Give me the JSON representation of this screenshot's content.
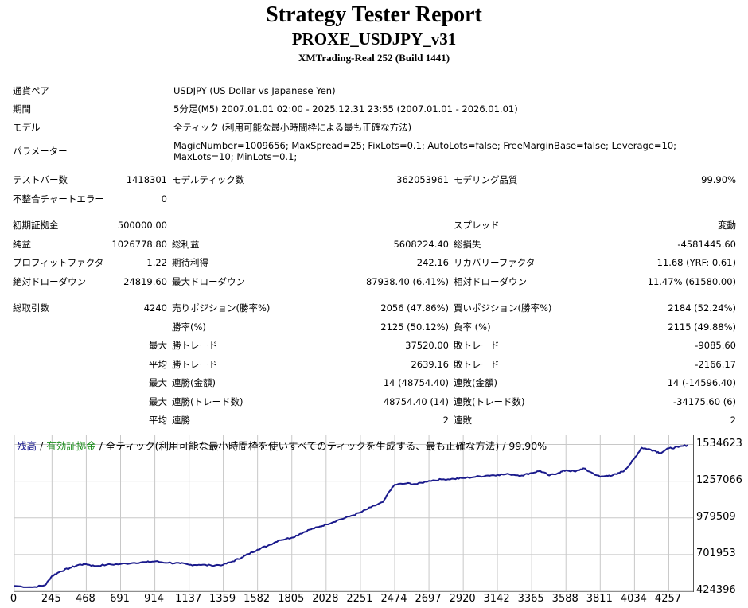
{
  "report": {
    "title": "Strategy Tester Report",
    "subtitle": "PROXE_USDJPY_v31",
    "server": "XMTrading-Real 252 (Build 1441)"
  },
  "info": {
    "symbol_label": "通貨ペア",
    "symbol_value": "USDJPY (US Dollar vs Japanese Yen)",
    "period_label": "期間",
    "period_value": "5分足(M5) 2007.01.01 02:00 - 2025.12.31 23:55 (2007.01.01 - 2026.01.01)",
    "model_label": "モデル",
    "model_value": "全ティック (利用可能な最小時間枠による最も正確な方法)",
    "params_label": "パラメーター",
    "params_value": "MagicNumber=1009656; MaxSpread=25; FixLots=0.1; AutoLots=false; FreeMarginBase=false; Leverage=10; MaxLots=10; MinLots=0.1;"
  },
  "stats": {
    "bars_label": "テストバー数",
    "bars_value": "1418301",
    "ticks_label": "モデルティック数",
    "ticks_value": "362053961",
    "quality_label": "モデリング品質",
    "quality_value": "99.90%",
    "mismatch_label": "不整合チャートエラー",
    "mismatch_value": "0",
    "deposit_label": "初期証拠金",
    "deposit_value": "500000.00",
    "spread_label": "スプレッド",
    "spread_value": "変動",
    "net_label": "純益",
    "net_value": "1026778.80",
    "gross_profit_label": "総利益",
    "gross_profit_value": "5608224.40",
    "gross_loss_label": "総損失",
    "gross_loss_value": "-4581445.60",
    "pf_label": "プロフィットファクタ",
    "pf_value": "1.22",
    "payoff_label": "期待利得",
    "payoff_value": "242.16",
    "recovery_label": "リカバリーファクタ",
    "recovery_value": "11.68 (YRF: 0.61)",
    "abs_dd_label": "絶対ドローダウン",
    "abs_dd_value": "24819.60",
    "max_dd_label": "最大ドローダウン",
    "max_dd_value": "87938.40 (6.41%)",
    "rel_dd_label": "相対ドローダウン",
    "rel_dd_value": "11.47% (61580.00)",
    "trades_label": "総取引数",
    "trades_value": "4240",
    "short_label": "売りポジション(勝率%)",
    "short_value": "2056 (47.86%)",
    "long_label": "買いポジション(勝率%)",
    "long_value": "2184 (52.24%)",
    "win_rate_label": "勝率(%)",
    "win_rate_value": "2125 (50.12%)",
    "loss_rate_label": "負率 (%)",
    "loss_rate_value": "2115 (49.88%)",
    "max_prefix": "最大",
    "avg_prefix": "平均",
    "largest_win_label": "勝トレード",
    "largest_win_value": "37520.00",
    "largest_loss_label": "敗トレード",
    "largest_loss_value": "-9085.60",
    "avg_win_label": "勝トレード",
    "avg_win_value": "2639.16",
    "avg_loss_label": "敗トレード",
    "avg_loss_value": "-2166.17",
    "cons_wins_money_label": "連勝(金額)",
    "cons_wins_money_value": "14 (48754.40)",
    "cons_losses_money_label": "連敗(金額)",
    "cons_losses_money_value": "14 (-14596.40)",
    "cons_wins_count_label": "連勝(トレード数)",
    "cons_wins_count_value": "48754.40 (14)",
    "cons_losses_count_label": "連敗(トレード数)",
    "cons_losses_count_value": "-34175.60 (6)",
    "avg_cons_wins_label": "連勝",
    "avg_cons_wins_value": "2",
    "avg_cons_losses_label": "連敗",
    "avg_cons_losses_value": "2"
  },
  "chart_legend": {
    "balance": "残高",
    "sep1": " / ",
    "equity": "有効証拠金",
    "sep2": " / ",
    "rest": "全ティック(利用可能な最小時間枠を使いすべてのティックを生成する、最も正確な方法) / 99.90%"
  },
  "colors": {
    "balance_line": "#1a1a8c",
    "equity_text": "#1f8f1f",
    "grid": "#c8c8c8"
  },
  "chart_data": {
    "type": "line",
    "title": "",
    "xlabel": "",
    "ylabel": "",
    "x_ticks": [
      "0",
      "245",
      "468",
      "691",
      "914",
      "1137",
      "1359",
      "1582",
      "1805",
      "2028",
      "2251",
      "2474",
      "2697",
      "2920",
      "3142",
      "3365",
      "3588",
      "3811",
      "4034",
      "4257"
    ],
    "y_ticks": [
      "1534623",
      "1257066",
      "979509",
      "701953",
      "424396"
    ],
    "xlim": [
      0,
      4415
    ],
    "ylim": [
      424396,
      1604000
    ],
    "grid": true,
    "series": [
      {
        "x": [
          0,
          120,
          200,
          245,
          300,
          360,
          420,
          468,
          520,
          600,
          691,
          780,
          860,
          914,
          1000,
          1080,
          1137,
          1200,
          1280,
          1359,
          1420,
          1480,
          1520,
          1582,
          1650,
          1720,
          1805,
          1860,
          1920,
          1980,
          2028,
          2100,
          2180,
          2251,
          2320,
          2400,
          2440,
          2474,
          2550,
          2620,
          2697,
          2780,
          2860,
          2920,
          3000,
          3080,
          3142,
          3220,
          3300,
          3365,
          3420,
          3480,
          3540,
          3588,
          3650,
          3700,
          3740,
          3811,
          3870,
          3920,
          3970,
          4000,
          4034,
          4080,
          4120,
          4160,
          4200,
          4257,
          4320,
          4380
        ],
        "y": [
          465000,
          455000,
          470000,
          540000,
          575000,
          600000,
          625000,
          630000,
          615000,
          625000,
          630000,
          640000,
          645000,
          650000,
          640000,
          635000,
          625000,
          625000,
          620000,
          625000,
          650000,
          680000,
          705000,
          740000,
          770000,
          810000,
          830000,
          860000,
          890000,
          910000,
          930000,
          960000,
          990000,
          1020000,
          1060000,
          1100000,
          1180000,
          1230000,
          1240000,
          1235000,
          1260000,
          1270000,
          1275000,
          1280000,
          1290000,
          1300000,
          1305000,
          1310000,
          1300000,
          1320000,
          1335000,
          1300000,
          1320000,
          1340000,
          1330000,
          1355000,
          1330000,
          1290000,
          1300000,
          1310000,
          1340000,
          1380000,
          1430000,
          1510000,
          1500000,
          1490000,
          1470000,
          1505000,
          1515000,
          1530000
        ]
      }
    ]
  }
}
